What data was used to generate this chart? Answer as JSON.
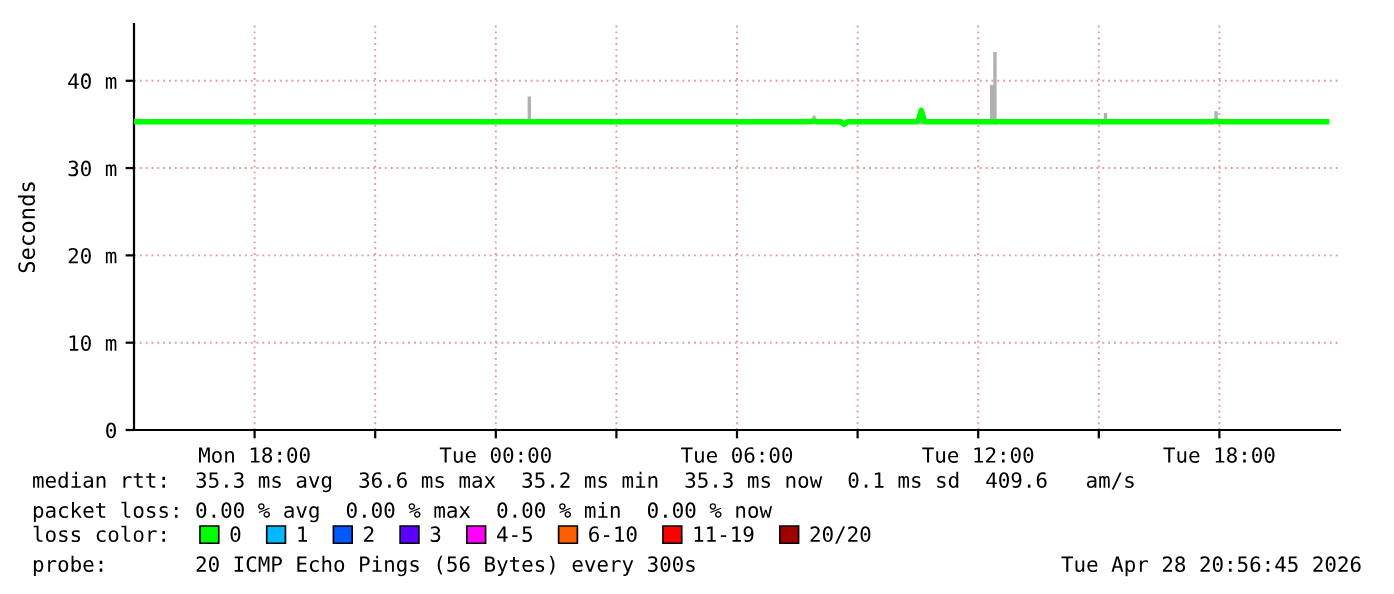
{
  "chart_data": {
    "type": "line",
    "ylabel": "Seconds",
    "x": [
      "2026-04-27T15:00",
      "2026-04-27T21:00",
      "2026-04-28T00:45",
      "2026-04-28T00:50",
      "2026-04-28T00:55",
      "2026-04-28T07:50",
      "2026-04-28T07:55",
      "2026-04-28T08:00",
      "2026-04-28T08:35",
      "2026-04-28T08:40",
      "2026-04-28T08:45",
      "2026-04-28T10:30",
      "2026-04-28T10:35",
      "2026-04-28T10:40",
      "2026-04-28T12:15",
      "2026-04-28T12:20",
      "2026-04-28T12:25",
      "2026-04-28T12:30",
      "2026-04-28T15:05",
      "2026-04-28T15:10",
      "2026-04-28T15:15",
      "2026-04-28T17:50",
      "2026-04-28T17:55",
      "2026-04-28T18:00",
      "2026-04-28T20:40"
    ],
    "series": [
      {
        "name": "0",
        "color": "#00ff00",
        "values": [
          35.3,
          35.3,
          35.3,
          35.3,
          35.3,
          35.3,
          35.4,
          35.3,
          35.3,
          35.0,
          35.3,
          35.3,
          36.6,
          35.3,
          35.3,
          35.3,
          35.3,
          35.3,
          35.3,
          35.3,
          35.3,
          35.3,
          35.4,
          35.3,
          35.3
        ],
        "lower": [
          35.3,
          35.3,
          35.3,
          35.2,
          35.3,
          35.3,
          35.2,
          35.3,
          35.3,
          35.0,
          35.3,
          35.3,
          35.0,
          35.3,
          35.3,
          35.2,
          35.0,
          35.3,
          35.3,
          35.3,
          35.3,
          35.3,
          35.3,
          35.3,
          35.3
        ],
        "upper": [
          35.3,
          35.3,
          35.3,
          38.2,
          35.3,
          35.3,
          36.0,
          35.3,
          35.3,
          35.0,
          35.3,
          35.3,
          36.6,
          35.3,
          35.3,
          39.5,
          43.3,
          35.3,
          35.3,
          36.3,
          35.3,
          35.3,
          36.5,
          35.3,
          35.3
        ]
      },
      {
        "name": "1",
        "color": "#00b8ff",
        "values": [
          null,
          null,
          null,
          null,
          null,
          null,
          null,
          null,
          null,
          null,
          null,
          null,
          null,
          null,
          null,
          null,
          null,
          null,
          null,
          null,
          null,
          null,
          null,
          null,
          null
        ]
      },
      {
        "name": "2",
        "color": "#0059ff",
        "values": [
          null,
          null,
          null,
          null,
          null,
          null,
          null,
          null,
          null,
          null,
          null,
          null,
          null,
          null,
          null,
          null,
          null,
          null,
          null,
          null,
          null,
          null,
          null,
          null,
          null
        ]
      },
      {
        "name": "3",
        "color": "#5e00ff",
        "values": [
          null,
          null,
          null,
          null,
          null,
          null,
          null,
          null,
          null,
          null,
          null,
          null,
          null,
          null,
          null,
          null,
          null,
          null,
          null,
          null,
          null,
          null,
          null,
          null,
          null
        ]
      },
      {
        "name": "4-5",
        "color": "#ff00ff",
        "values": [
          null,
          null,
          null,
          null,
          null,
          null,
          null,
          null,
          null,
          null,
          null,
          null,
          null,
          null,
          null,
          null,
          null,
          null,
          null,
          null,
          null,
          null,
          null,
          null,
          null
        ]
      },
      {
        "name": "6-10",
        "color": "#ff5e00",
        "values": [
          null,
          null,
          null,
          null,
          null,
          null,
          null,
          null,
          null,
          null,
          null,
          null,
          null,
          null,
          null,
          null,
          null,
          null,
          null,
          null,
          null,
          null,
          null,
          null,
          null
        ]
      },
      {
        "name": "11-19",
        "color": "#ff0000",
        "values": [
          null,
          null,
          null,
          null,
          null,
          null,
          null,
          null,
          null,
          null,
          null,
          null,
          null,
          null,
          null,
          null,
          null,
          null,
          null,
          null,
          null,
          null,
          null,
          null,
          null
        ]
      },
      {
        "name": "20/20",
        "color": "#a10000",
        "values": [
          null,
          null,
          null,
          null,
          null,
          null,
          null,
          null,
          null,
          null,
          null,
          null,
          null,
          null,
          null,
          null,
          null,
          null,
          null,
          null,
          null,
          null,
          null,
          null,
          null
        ]
      }
    ],
    "legend": "bottom",
    "legend_title": "loss color:",
    "xlim": [
      "2026-04-27T15:00",
      "2026-04-28T21:00"
    ],
    "xticks": [
      {
        "value": "2026-04-27T18:00",
        "label": "Mon 18:00"
      },
      {
        "value": "2026-04-27T21:00",
        "label": null
      },
      {
        "value": "2026-04-28T00:00",
        "label": "Tue 00:00"
      },
      {
        "value": "2026-04-28T03:00",
        "label": null
      },
      {
        "value": "2026-04-28T06:00",
        "label": "Tue 06:00"
      },
      {
        "value": "2026-04-28T09:00",
        "label": null
      },
      {
        "value": "2026-04-28T12:00",
        "label": "Tue 12:00"
      },
      {
        "value": "2026-04-28T15:00",
        "label": null
      },
      {
        "value": "2026-04-28T18:00",
        "label": "Tue 18:00"
      }
    ],
    "ylim": [
      0,
      46.5
    ],
    "yticks": [
      0,
      {
        "value": 10,
        "label": "10 m"
      },
      {
        "value": 20,
        "label": "20 m"
      },
      {
        "value": 30,
        "label": "30 m"
      },
      {
        "value": 40,
        "label": "40 m"
      }
    ],
    "grid": true,
    "annotations": [
      "median rtt:  35.3 ms avg  36.6 ms max  35.2 ms min  35.3 ms now  0.1 ms sd  409.6   am/s",
      "packet loss: 0.00 % avg  0.00 % max  0.00 % min  0.00 % now",
      "probe:       20 ICMP Echo Pings (56 Bytes) every 300s",
      "Tue Apr 28 20:56:45 2026"
    ]
  }
}
